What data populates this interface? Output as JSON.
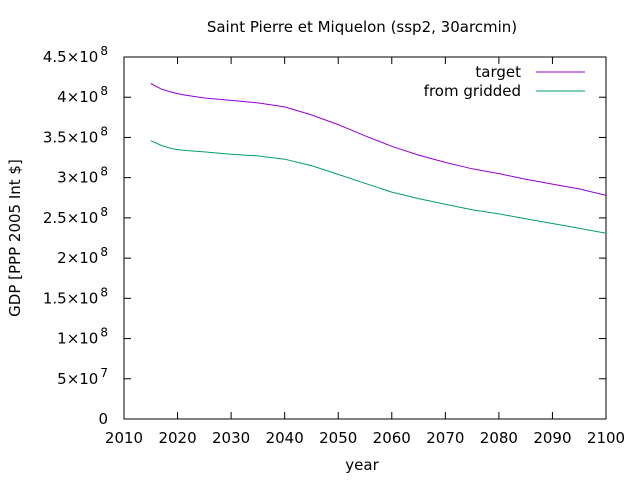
{
  "chart_data": {
    "type": "line",
    "title": "Saint Pierre et Miquelon (ssp2, 30arcmin)",
    "xlabel": "year",
    "ylabel": "GDP [PPP 2005 Int $]",
    "xlim": [
      2010,
      2100
    ],
    "ylim": [
      0,
      450000000
    ],
    "grid": false,
    "legend_position": "top-right",
    "x_ticks": [
      {
        "value": 2010,
        "label": "2010"
      },
      {
        "value": 2020,
        "label": "2020"
      },
      {
        "value": 2030,
        "label": "2030"
      },
      {
        "value": 2040,
        "label": "2040"
      },
      {
        "value": 2050,
        "label": "2050"
      },
      {
        "value": 2060,
        "label": "2060"
      },
      {
        "value": 2070,
        "label": "2070"
      },
      {
        "value": 2080,
        "label": "2080"
      },
      {
        "value": 2090,
        "label": "2090"
      },
      {
        "value": 2100,
        "label": "2100"
      }
    ],
    "y_ticks": [
      {
        "value": 0,
        "mantissa": "0",
        "exponent": ""
      },
      {
        "value": 50000000,
        "mantissa": "5×10",
        "exponent": "7"
      },
      {
        "value": 100000000,
        "mantissa": "1×10",
        "exponent": "8"
      },
      {
        "value": 150000000,
        "mantissa": "1.5×10",
        "exponent": "8"
      },
      {
        "value": 200000000,
        "mantissa": "2×10",
        "exponent": "8"
      },
      {
        "value": 250000000,
        "mantissa": "2.5×10",
        "exponent": "8"
      },
      {
        "value": 300000000,
        "mantissa": "3×10",
        "exponent": "8"
      },
      {
        "value": 350000000,
        "mantissa": "3.5×10",
        "exponent": "8"
      },
      {
        "value": 400000000,
        "mantissa": "4×10",
        "exponent": "8"
      },
      {
        "value": 450000000,
        "mantissa": "4.5×10",
        "exponent": "8"
      }
    ],
    "series": [
      {
        "name": "target",
        "color": "#9400d3",
        "x": [
          2015,
          2017,
          2019,
          2021,
          2025,
          2030,
          2035,
          2040,
          2045,
          2050,
          2055,
          2060,
          2065,
          2070,
          2075,
          2080,
          2085,
          2090,
          2095,
          2100
        ],
        "y": [
          417000000,
          410000000,
          406000000,
          403000000,
          399000000,
          396000000,
          393000000,
          388000000,
          378000000,
          366000000,
          352000000,
          339000000,
          328000000,
          319000000,
          311000000,
          305000000,
          298000000,
          292000000,
          286000000,
          278000000
        ]
      },
      {
        "name": "from gridded",
        "color": "#009e73",
        "x": [
          2015,
          2017,
          2019,
          2021,
          2025,
          2030,
          2035,
          2040,
          2045,
          2050,
          2055,
          2060,
          2065,
          2070,
          2075,
          2080,
          2085,
          2090,
          2095,
          2100
        ],
        "y": [
          346000000,
          340000000,
          336000000,
          334000000,
          332000000,
          329000000,
          327000000,
          323000000,
          315000000,
          304000000,
          293000000,
          282000000,
          274000000,
          267000000,
          260000000,
          255000000,
          249000000,
          243000000,
          237000000,
          231000000
        ]
      }
    ]
  }
}
